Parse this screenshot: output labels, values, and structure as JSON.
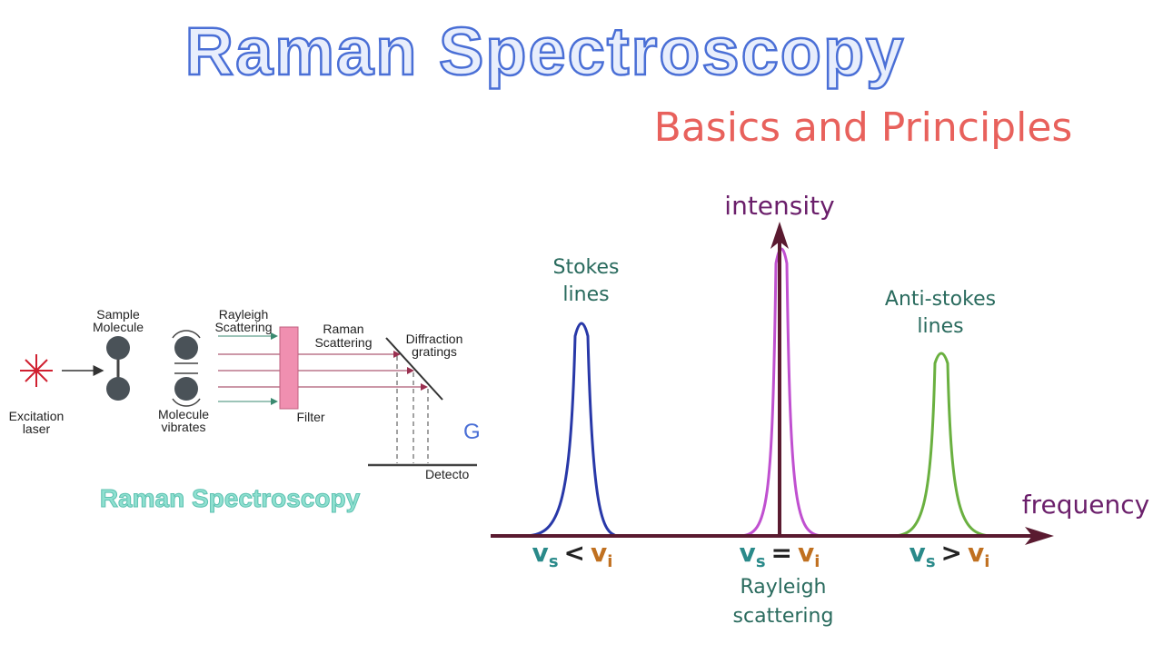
{
  "header": {
    "title": "Raman Spectroscopy",
    "subtitle": "Basics and Principles"
  },
  "setup_diagram": {
    "labels": {
      "sample_molecule": [
        "Sample",
        "Molecule"
      ],
      "rayleigh_scattering": [
        "Rayleigh",
        "Scattering"
      ],
      "raman_scattering": [
        "Raman",
        "Scattering"
      ],
      "diffraction_gratings": [
        "Diffraction",
        "gratings"
      ],
      "excitation_laser": [
        "Excitation",
        "laser"
      ],
      "molecule_vibrates": [
        "Molecule",
        "vibrates"
      ],
      "filter": "Filter",
      "detector": "Detecto",
      "cut_letter": "G"
    },
    "caption": "Raman Spectroscopy"
  },
  "spectrum": {
    "y_axis_label": "intensity",
    "x_axis_label": "frequency",
    "stokes_label": [
      "Stokes",
      "lines"
    ],
    "anti_stokes_label": [
      "Anti-stokes",
      "lines"
    ],
    "rayleigh_label": [
      "Rayleigh",
      "scattering"
    ],
    "relations": [
      {
        "left": "v",
        "left_sub": "s",
        "op": "<",
        "right": "v",
        "right_sub": "i"
      },
      {
        "left": "v",
        "left_sub": "s",
        "op": "=",
        "right": "v",
        "right_sub": "i"
      },
      {
        "left": "v",
        "left_sub": "s",
        "op": ">",
        "right": "v",
        "right_sub": "i"
      }
    ]
  }
}
